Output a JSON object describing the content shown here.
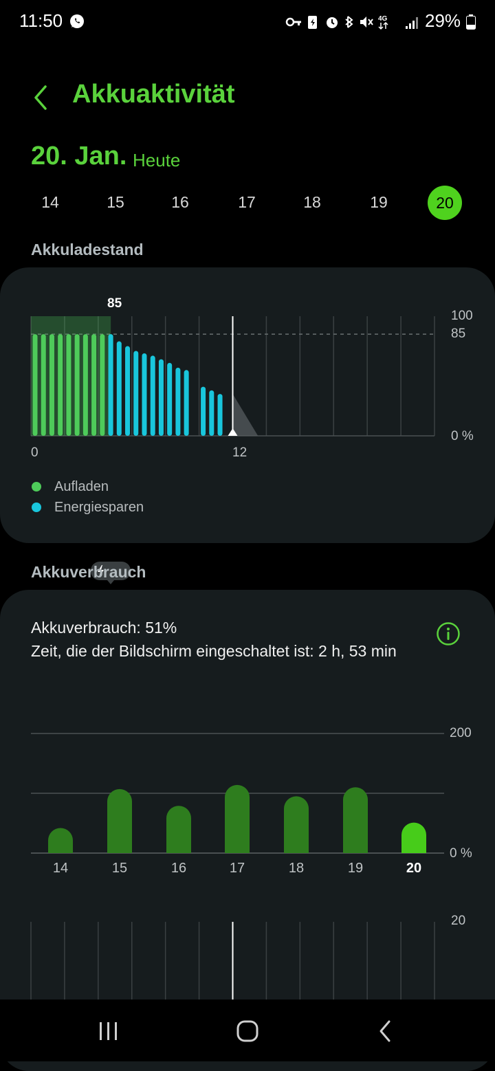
{
  "status_bar": {
    "time": "11:50",
    "battery_percent": "29%",
    "network": "4G",
    "icons": [
      "whatsapp-icon",
      "key-icon",
      "battery-saver-icon",
      "alarm-icon",
      "bluetooth-icon",
      "mute-icon",
      "network-4g-icon",
      "signal-icon",
      "battery-icon"
    ]
  },
  "header": {
    "title": "Akkuaktivität",
    "back_icon": "chevron-left-icon"
  },
  "date": {
    "main": "20. Jan.",
    "sub": "Heute"
  },
  "day_tabs": [
    {
      "label": "14",
      "active": false
    },
    {
      "label": "15",
      "active": false
    },
    {
      "label": "16",
      "active": false
    },
    {
      "label": "17",
      "active": false
    },
    {
      "label": "18",
      "active": false
    },
    {
      "label": "19",
      "active": false
    },
    {
      "label": "20",
      "active": true
    }
  ],
  "colors": {
    "accent": "#5ad23c",
    "charging": "#4ecb5a",
    "power_saving": "#19c6dc",
    "usage_bar": "#2e7d1e",
    "usage_bar_selected": "#47cc1a"
  },
  "battery_level": {
    "section_label": "Akkuladestand",
    "charge_badge": "85",
    "y_labels": {
      "top": "100",
      "mid": "85",
      "bottom": "0 %"
    },
    "x_labels": {
      "start": "0",
      "mid": "12"
    },
    "legend": [
      {
        "label": "Aufladen",
        "color": "#4ecb5a"
      },
      {
        "label": "Energiesparen",
        "color": "#19c6dc"
      }
    ]
  },
  "battery_usage": {
    "section_label": "Akkuverbrauch",
    "usage_line": "Akkuverbrauch: 51%",
    "screen_time_line": "Zeit, die der Bildschirm eingeschaltet ist: 2 h, 53 min",
    "info_icon": "info-icon",
    "y_labels": {
      "top": "200",
      "bottom": "0 %"
    },
    "secondary_top_label": "20"
  },
  "nav_bar": {
    "recents_icon": "recents-icon",
    "home_icon": "home-icon",
    "back_icon": "back-icon"
  },
  "chart_data": [
    {
      "type": "bar",
      "title": "",
      "xlabel": "",
      "ylabel": "",
      "x_range_hours": [
        0,
        24
      ],
      "ylim": [
        0,
        100
      ],
      "reference_line": 85,
      "current_time_hour": 12,
      "series": [
        {
          "name": "Aufladen",
          "x": [
            0,
            0.5,
            1,
            1.5,
            2,
            2.5,
            3,
            3.5,
            4,
            4.5
          ],
          "values": [
            85,
            85,
            85,
            85,
            85,
            85,
            85,
            85,
            85,
            85
          ]
        },
        {
          "name": "Energiesparen",
          "x": [
            4.5,
            5,
            5.5,
            6,
            6.5,
            7,
            7.5,
            8,
            8.5,
            9,
            10,
            10.5,
            11
          ],
          "values": [
            85,
            79,
            75,
            71,
            69,
            67,
            64,
            61,
            57,
            55,
            41,
            38,
            35
          ]
        }
      ],
      "charging_shade_hours": [
        0,
        4.75
      ],
      "projection": {
        "from_hour": 12,
        "to_hour": 13.5,
        "from_value": 35,
        "to_value": 0
      }
    },
    {
      "type": "bar",
      "title": "",
      "xlabel": "",
      "ylabel": "",
      "categories": [
        "14",
        "15",
        "16",
        "17",
        "18",
        "19",
        "20"
      ],
      "values": [
        42,
        107,
        79,
        114,
        95,
        110,
        51
      ],
      "ylim": [
        0,
        200
      ],
      "selected": "20"
    }
  ]
}
